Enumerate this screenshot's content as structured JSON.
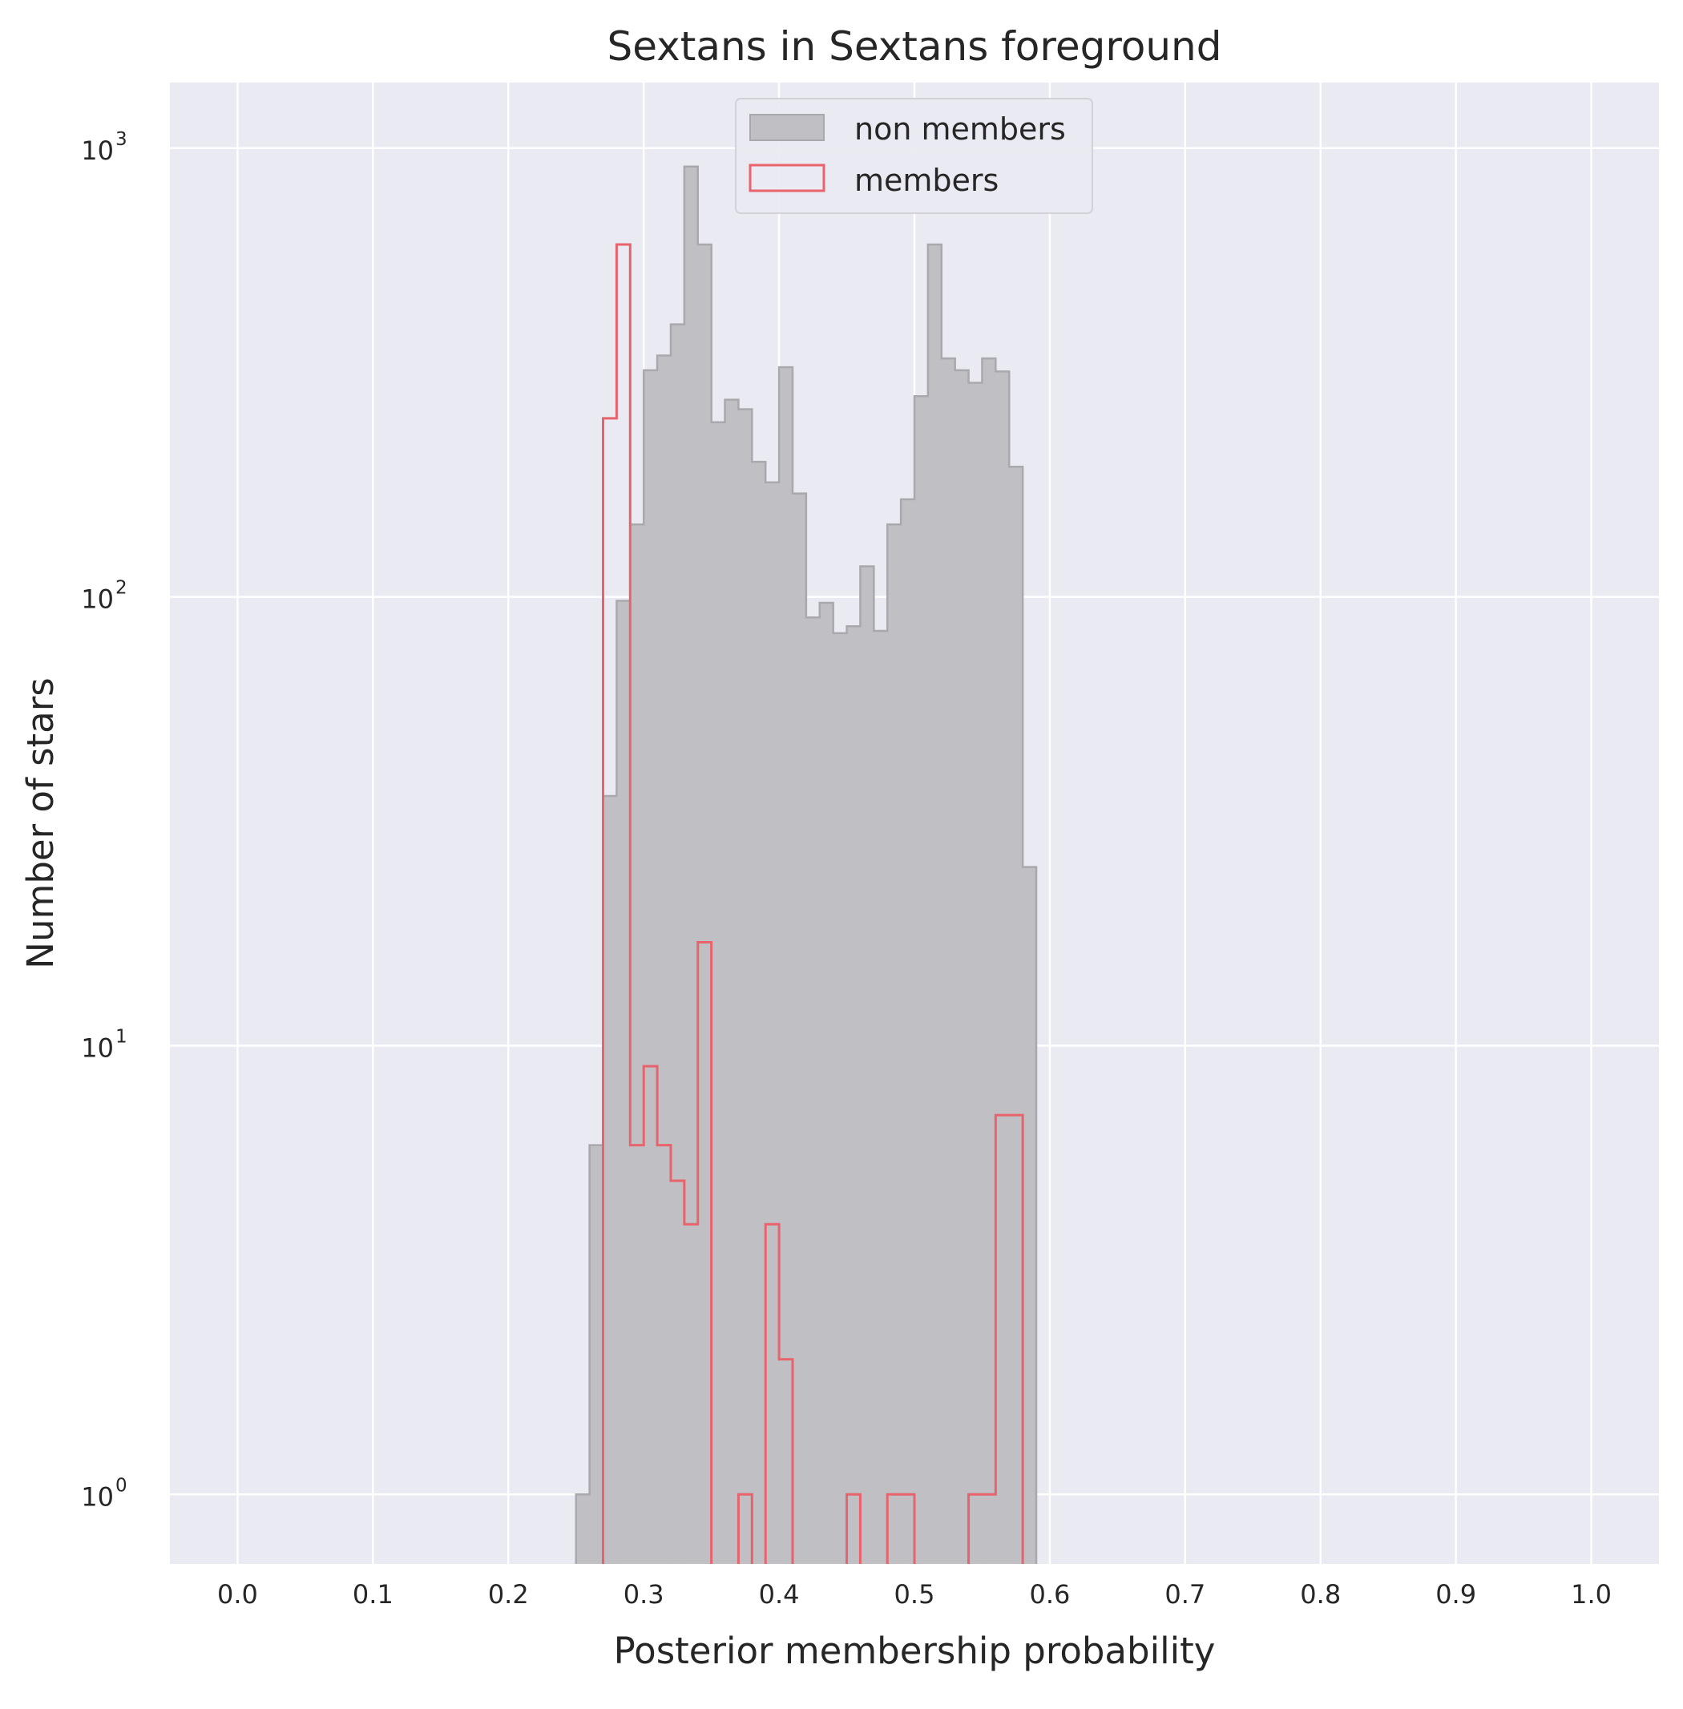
{
  "chart_data": {
    "type": "histogram",
    "title": "Sextans in Sextans foreground",
    "xlabel": "Posterior membership probability",
    "ylabel": "Number of stars",
    "xlim": [
      -0.05,
      1.05
    ],
    "ylim": [
      0.7,
      1400
    ],
    "yscale": "log",
    "grid": true,
    "legend_position": "top-center",
    "x_ticks": [
      0.0,
      0.1,
      0.2,
      0.3,
      0.4,
      0.5,
      0.6,
      0.7,
      0.8,
      0.9,
      1.0
    ],
    "x_tick_labels": [
      "0.0",
      "0.1",
      "0.2",
      "0.3",
      "0.4",
      "0.5",
      "0.6",
      "0.7",
      "0.8",
      "0.9",
      "1.0"
    ],
    "y_ticks": [
      {
        "value": 1,
        "base": "10",
        "exp": "0"
      },
      {
        "value": 10,
        "base": "10",
        "exp": "1"
      },
      {
        "value": 100,
        "base": "10",
        "exp": "2"
      },
      {
        "value": 1000,
        "base": "10",
        "exp": "3"
      }
    ],
    "bin_width": 0.01,
    "series": [
      {
        "name": "non members",
        "style": "filled",
        "fill_color": "#bfbfc4",
        "edge_color": "#a9a9ad",
        "bins_start": 0.25,
        "counts": [
          1,
          6,
          36,
          98,
          145,
          320,
          345,
          405,
          910,
          610,
          245,
          275,
          262,
          200,
          180,
          325,
          170,
          90,
          97,
          83,
          86,
          117,
          84,
          145,
          165,
          280,
          610,
          340,
          320,
          300,
          340,
          318,
          195,
          25
        ]
      },
      {
        "name": "members",
        "style": "step",
        "edge_color": "#e8636b",
        "bins_start": 0.27,
        "counts": [
          250,
          610,
          6,
          9,
          6,
          5,
          4,
          17,
          0,
          0,
          1,
          0,
          4,
          2,
          0,
          0,
          0,
          0,
          1,
          0,
          0,
          1,
          1,
          0,
          0,
          0,
          0,
          1,
          1,
          7,
          7
        ]
      }
    ]
  }
}
